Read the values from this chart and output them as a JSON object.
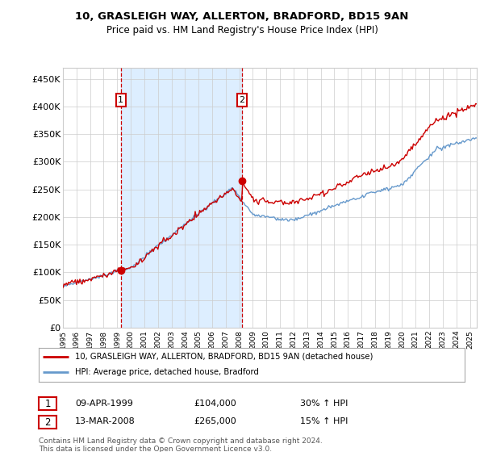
{
  "title1": "10, GRASLEIGH WAY, ALLERTON, BRADFORD, BD15 9AN",
  "title2": "Price paid vs. HM Land Registry's House Price Index (HPI)",
  "legend_line1": "10, GRASLEIGH WAY, ALLERTON, BRADFORD, BD15 9AN (detached house)",
  "legend_line2": "HPI: Average price, detached house, Bradford",
  "footnote": "Contains HM Land Registry data © Crown copyright and database right 2024.\nThis data is licensed under the Open Government Licence v3.0.",
  "transaction1": {
    "label": "1",
    "date": "09-APR-1999",
    "price": 104000,
    "note": "30% ↑ HPI",
    "year": 1999.27
  },
  "transaction2": {
    "label": "2",
    "date": "13-MAR-2008",
    "price": 265000,
    "note": "15% ↑ HPI",
    "year": 2008.2
  },
  "ylim": [
    0,
    470000
  ],
  "xlim_start": 1995.0,
  "xlim_end": 2025.5,
  "red_color": "#cc0000",
  "blue_color": "#6699cc",
  "shade_color": "#ddeeff",
  "plot_bg": "#ffffff",
  "grid_color": "#cccccc",
  "marker_box_color": "#cc0000"
}
